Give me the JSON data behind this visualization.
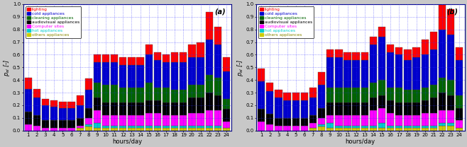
{
  "hours": [
    1,
    2,
    3,
    4,
    5,
    6,
    7,
    8,
    9,
    10,
    11,
    12,
    13,
    14,
    15,
    16,
    17,
    18,
    19,
    20,
    21,
    22,
    23,
    24
  ],
  "colors": {
    "lighting": "#ff0000",
    "cold": "#0000cc",
    "cleaning": "#006400",
    "audiovisual": "#000000",
    "computer": "#ff00ff",
    "hot": "#00cccc",
    "others": "#cccc00"
  },
  "legend_labels": [
    "lighting",
    "cold appliances",
    "cleaning appliances",
    "audiovisual appliances",
    "Computer sites",
    "hot appliances",
    "others appliances"
  ],
  "legend_text_colors": [
    "#ff0000",
    "#0000cc",
    "#006400",
    "#000000",
    "#ff00ff",
    "#00cccc",
    "#888800"
  ],
  "chart_a": {
    "others": [
      0.0,
      0.0,
      0.0,
      0.0,
      0.0,
      0.0,
      0.02,
      0.03,
      0.02,
      0.02,
      0.02,
      0.02,
      0.02,
      0.02,
      0.02,
      0.02,
      0.02,
      0.02,
      0.02,
      0.02,
      0.02,
      0.02,
      0.02,
      0.02
    ],
    "hot": [
      0.0,
      0.0,
      0.0,
      0.0,
      0.0,
      0.0,
      0.0,
      0.02,
      0.04,
      0.02,
      0.02,
      0.02,
      0.02,
      0.02,
      0.02,
      0.02,
      0.02,
      0.02,
      0.02,
      0.02,
      0.02,
      0.02,
      0.02,
      0.0
    ],
    "computer": [
      0.05,
      0.04,
      0.02,
      0.02,
      0.02,
      0.02,
      0.02,
      0.05,
      0.1,
      0.08,
      0.08,
      0.08,
      0.08,
      0.08,
      0.1,
      0.1,
      0.08,
      0.08,
      0.08,
      0.1,
      0.1,
      0.12,
      0.12,
      0.05
    ],
    "audiovisual": [
      0.1,
      0.08,
      0.06,
      0.06,
      0.06,
      0.06,
      0.06,
      0.08,
      0.1,
      0.1,
      0.1,
      0.1,
      0.1,
      0.1,
      0.1,
      0.1,
      0.1,
      0.1,
      0.1,
      0.12,
      0.12,
      0.14,
      0.12,
      0.1
    ],
    "cleaning": [
      0.0,
      0.0,
      0.0,
      0.0,
      0.0,
      0.0,
      0.0,
      0.0,
      0.12,
      0.14,
      0.14,
      0.12,
      0.12,
      0.12,
      0.14,
      0.1,
      0.12,
      0.1,
      0.1,
      0.1,
      0.1,
      0.14,
      0.14,
      0.08
    ],
    "cold": [
      0.18,
      0.14,
      0.12,
      0.11,
      0.1,
      0.1,
      0.1,
      0.14,
      0.16,
      0.18,
      0.18,
      0.18,
      0.18,
      0.18,
      0.22,
      0.22,
      0.2,
      0.22,
      0.22,
      0.22,
      0.22,
      0.28,
      0.26,
      0.22
    ],
    "lighting": [
      0.09,
      0.07,
      0.05,
      0.05,
      0.05,
      0.05,
      0.08,
      0.09,
      0.06,
      0.06,
      0.06,
      0.06,
      0.06,
      0.06,
      0.08,
      0.06,
      0.06,
      0.08,
      0.08,
      0.1,
      0.12,
      0.22,
      0.14,
      0.11
    ]
  },
  "chart_b": {
    "others": [
      0.0,
      0.0,
      0.0,
      0.0,
      0.0,
      0.0,
      0.02,
      0.03,
      0.02,
      0.02,
      0.02,
      0.02,
      0.02,
      0.02,
      0.02,
      0.02,
      0.02,
      0.02,
      0.02,
      0.02,
      0.02,
      0.04,
      0.04,
      0.02
    ],
    "hot": [
      0.0,
      0.0,
      0.0,
      0.0,
      0.0,
      0.0,
      0.0,
      0.02,
      0.04,
      0.02,
      0.02,
      0.02,
      0.02,
      0.02,
      0.04,
      0.02,
      0.02,
      0.02,
      0.02,
      0.02,
      0.02,
      0.02,
      0.02,
      0.0
    ],
    "computer": [
      0.07,
      0.05,
      0.04,
      0.04,
      0.04,
      0.04,
      0.04,
      0.05,
      0.06,
      0.08,
      0.08,
      0.08,
      0.08,
      0.12,
      0.12,
      0.1,
      0.08,
      0.08,
      0.08,
      0.1,
      0.1,
      0.1,
      0.1,
      0.06
    ],
    "audiovisual": [
      0.1,
      0.08,
      0.06,
      0.06,
      0.06,
      0.06,
      0.06,
      0.08,
      0.1,
      0.1,
      0.1,
      0.1,
      0.1,
      0.1,
      0.1,
      0.1,
      0.1,
      0.1,
      0.1,
      0.1,
      0.12,
      0.14,
      0.12,
      0.1
    ],
    "cleaning": [
      0.0,
      0.0,
      0.0,
      0.0,
      0.0,
      0.0,
      0.0,
      0.0,
      0.12,
      0.12,
      0.12,
      0.12,
      0.12,
      0.12,
      0.12,
      0.1,
      0.12,
      0.1,
      0.1,
      0.1,
      0.1,
      0.12,
      0.12,
      0.1
    ],
    "cold": [
      0.22,
      0.18,
      0.16,
      0.14,
      0.14,
      0.14,
      0.14,
      0.18,
      0.24,
      0.24,
      0.22,
      0.22,
      0.22,
      0.3,
      0.34,
      0.28,
      0.26,
      0.24,
      0.26,
      0.26,
      0.28,
      0.38,
      0.36,
      0.28
    ],
    "lighting": [
      0.1,
      0.07,
      0.06,
      0.06,
      0.06,
      0.06,
      0.08,
      0.1,
      0.06,
      0.06,
      0.06,
      0.06,
      0.06,
      0.06,
      0.08,
      0.06,
      0.06,
      0.08,
      0.08,
      0.12,
      0.14,
      0.28,
      0.2,
      0.1
    ]
  },
  "ylabel": "$p_{el}$ [-]",
  "xlabel": "hours/day",
  "label_a": "(a)",
  "label_b": "(b)",
  "ylim": [
    0.0,
    1.0
  ],
  "yticks": [
    0.0,
    0.1,
    0.2,
    0.3,
    0.4,
    0.5,
    0.6,
    0.7,
    0.8,
    0.9,
    1.0
  ],
  "bg_color": "#c8c8c8",
  "plot_bg": "#ffffff",
  "grid_color": "#3333ff"
}
